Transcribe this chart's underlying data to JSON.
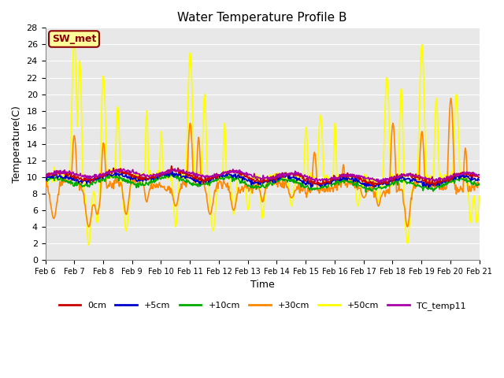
{
  "title": "Water Temperature Profile B",
  "xlabel": "Time",
  "ylabel": "Temperature(C)",
  "ylim": [
    0,
    28
  ],
  "yticks": [
    0,
    2,
    4,
    6,
    8,
    10,
    12,
    14,
    16,
    18,
    20,
    22,
    24,
    26,
    28
  ],
  "xtick_labels": [
    "Feb 6",
    "Feb 7",
    "Feb 8",
    "Feb 9",
    "Feb 10",
    "Feb 11",
    "Feb 12",
    "Feb 13",
    "Feb 14",
    "Feb 15",
    "Feb 16",
    "Feb 17",
    "Feb 18",
    "Feb 19",
    "Feb 20",
    "Feb 21"
  ],
  "annotation_text": "SW_met",
  "annotation_color": "#8B0000",
  "annotation_bg": "#FFFF99",
  "annotation_border": "#8B0000",
  "series_colors": {
    "0cm": "#CC0000",
    "+5cm": "#0000CC",
    "+10cm": "#00AA00",
    "+30cm": "#FF8800",
    "+50cm": "#FFFF00",
    "TC_temp11": "#AA00AA"
  },
  "line_width": 1.2,
  "plot_bg": "#E8E8E8",
  "grid_color": "#FFFFFF",
  "n_points": 720,
  "seed": 42
}
